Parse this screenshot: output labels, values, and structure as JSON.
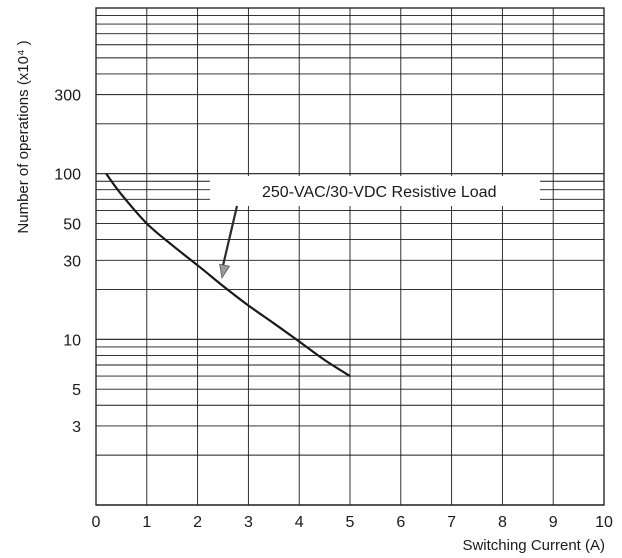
{
  "chart_data": {
    "type": "line",
    "x_scale": "linear",
    "y_scale": "log",
    "xlim": [
      0,
      10
    ],
    "ylim": [
      1,
      1000
    ],
    "grid": true,
    "xlabel": "Switching Current (A)",
    "ylabel": "Number of operations  (x10⁴ )",
    "x_ticks": [
      {
        "label": "0",
        "value": 0
      },
      {
        "label": "1",
        "value": 1
      },
      {
        "label": "2",
        "value": 2
      },
      {
        "label": "3",
        "value": 3
      },
      {
        "label": "4",
        "value": 4
      },
      {
        "label": "5",
        "value": 5
      },
      {
        "label": "6",
        "value": 6
      },
      {
        "label": "7",
        "value": 7
      },
      {
        "label": "8",
        "value": 8
      },
      {
        "label": "9",
        "value": 9
      },
      {
        "label": "10",
        "value": 10
      }
    ],
    "y_ticks": [
      {
        "label": "300",
        "value": 300
      },
      {
        "label": "100",
        "value": 100
      },
      {
        "label": "50",
        "value": 50
      },
      {
        "label": "30",
        "value": 30
      },
      {
        "label": "10",
        "value": 10
      },
      {
        "label": "5",
        "value": 5
      },
      {
        "label": "3",
        "value": 3
      }
    ],
    "series": [
      {
        "name": "250-VAC/30-VDC Resistive Load",
        "color": "#1a1a1a",
        "x": [
          0.2,
          0.5,
          1.0,
          1.5,
          2.0,
          2.5,
          3.0,
          3.5,
          4.0,
          4.5,
          5.0
        ],
        "y": [
          100,
          75,
          50,
          37,
          28,
          21,
          16,
          12.5,
          9.7,
          7.5,
          6.0
        ]
      }
    ],
    "annotations": [
      {
        "text": "250-VAC/30-VDC Resistive Load",
        "arrow_to": {
          "x": 2.4,
          "y": 21
        }
      }
    ]
  }
}
